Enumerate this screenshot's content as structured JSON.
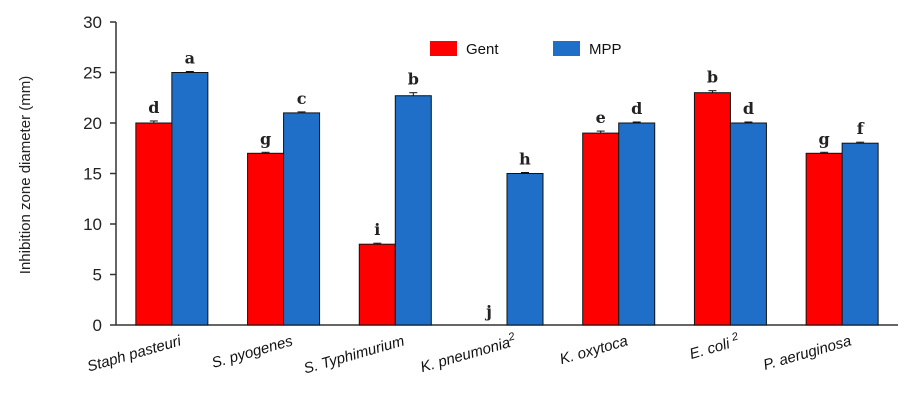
{
  "chart_data": {
    "type": "bar",
    "ylabel": "Inhibition zone diameter (mm)",
    "ylim": [
      0,
      30
    ],
    "yticks": [
      0,
      5,
      10,
      15,
      20,
      25,
      30
    ],
    "categories": [
      {
        "label": "Staph pasteuri",
        "sup": ""
      },
      {
        "label": "S. pyogenes",
        "sup": ""
      },
      {
        "label": "S. Typhimurium",
        "sup": ""
      },
      {
        "label": "K. pneumonia",
        "sup": "2"
      },
      {
        "label": "K. oxytoca",
        "sup": ""
      },
      {
        "label": "E. coli ",
        "sup": "2"
      },
      {
        "label": "P. aeruginosa",
        "sup": ""
      }
    ],
    "series": [
      {
        "name": "Gent",
        "color": "#ff0000",
        "values": [
          20,
          17,
          8,
          0,
          19,
          23,
          17
        ],
        "errors": [
          0.2,
          0.1,
          0.1,
          0,
          0.2,
          0.2,
          0.1
        ],
        "letters": [
          "d",
          "g",
          "i",
          "j",
          "e",
          "b",
          "g"
        ]
      },
      {
        "name": "MPP",
        "color": "#1f6fc8",
        "values": [
          25,
          21,
          22.7,
          15,
          20,
          20,
          18
        ],
        "errors": [
          0.1,
          0.1,
          0.3,
          0.1,
          0.1,
          0.1,
          0.1
        ],
        "letters": [
          "a",
          "c",
          "b",
          "h",
          "d",
          "d",
          "f"
        ]
      }
    ],
    "legend_position": "top-center",
    "grid": false
  }
}
